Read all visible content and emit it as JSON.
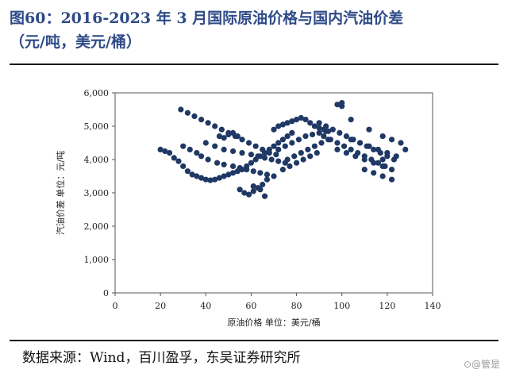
{
  "figure": {
    "title_line1": "图60：2016-2023 年 3 月国际原油价格与国内汽油价差",
    "title_line2": "（元/吨，美元/桶）",
    "source": "数据来源：Wind，百川盈孚，东吴证券研究所",
    "watermark": "⊙@管是"
  },
  "chart_data": {
    "type": "scatter",
    "title": "2016-2023 年 3 月国际原油价格与国内汽油价差",
    "xlabel": "原油价格 单位：美元/桶",
    "ylabel": "汽油价差 单位：元/吨",
    "xlim": [
      0,
      140
    ],
    "ylim": [
      0,
      6000
    ],
    "x_ticks": [
      "0",
      "20",
      "40",
      "60",
      "80",
      "100",
      "120",
      "140"
    ],
    "y_ticks": [
      "0",
      "1,000",
      "2,000",
      "3,000",
      "4,000",
      "5,000",
      "6,000"
    ],
    "grid": false,
    "marker_color": "#1f3864",
    "series": [
      {
        "x": [
          20,
          22,
          24,
          26,
          28,
          30,
          32,
          34,
          36,
          38,
          40,
          42,
          44,
          46,
          48,
          50,
          52,
          54,
          56,
          58,
          60,
          62,
          64,
          66,
          68,
          70,
          72,
          74,
          76,
          78,
          29,
          32,
          35,
          38,
          41,
          44,
          47,
          50,
          53,
          56,
          59,
          62,
          65,
          68,
          71,
          30,
          33,
          36,
          38,
          41,
          45,
          48,
          52,
          55,
          58,
          61,
          64,
          67,
          70,
          40,
          44,
          48,
          52,
          56,
          60,
          63,
          66,
          69,
          72,
          75,
          55,
          57,
          59,
          61,
          63,
          65,
          67,
          61,
          64,
          66,
          70,
          72,
          74,
          76,
          78,
          80,
          82,
          84,
          86,
          88,
          90,
          92,
          94,
          72,
          75,
          78,
          81,
          84,
          87,
          90,
          93,
          76,
          79,
          82,
          85,
          88,
          91,
          94,
          74,
          77,
          80,
          83,
          86,
          89,
          90,
          93,
          96,
          99,
          102,
          105,
          108,
          111,
          114,
          117,
          120,
          123,
          92,
          95,
          98,
          101,
          104,
          107,
          110,
          113,
          116,
          119,
          122,
          98,
          102,
          106,
          110,
          114,
          118,
          104,
          108,
          112,
          116,
          120,
          124,
          128,
          110,
          114,
          118,
          122,
          100,
          104,
          112,
          118,
          122,
          126,
          98,
          100,
          118,
          46,
          48,
          50,
          52,
          54
        ],
        "y": [
          4300,
          4250,
          4200,
          4050,
          3950,
          3800,
          3650,
          3550,
          3500,
          3450,
          3400,
          3380,
          3400,
          3450,
          3500,
          3550,
          3600,
          3650,
          3700,
          3800,
          3900,
          4000,
          4100,
          4200,
          4300,
          4400,
          4500,
          4600,
          4700,
          4800,
          5500,
          5400,
          5300,
          5200,
          5100,
          5000,
          4900,
          4800,
          4700,
          4600,
          4500,
          4400,
          4300,
          4200,
          4150,
          4400,
          4300,
          4200,
          4100,
          4000,
          3900,
          3850,
          3800,
          3750,
          3700,
          3650,
          3600,
          3550,
          3500,
          4500,
          4400,
          4300,
          4250,
          4200,
          4150,
          4100,
          4050,
          4000,
          3950,
          3900,
          3100,
          3000,
          2950,
          3050,
          3150,
          3250,
          3400,
          3200,
          3100,
          2900,
          4900,
          5000,
          5050,
          5100,
          5150,
          5200,
          5250,
          5200,
          5100,
          5000,
          4950,
          4900,
          4850,
          4300,
          4400,
          4500,
          4600,
          4700,
          4750,
          4800,
          4850,
          4000,
          4100,
          4200,
          4300,
          4400,
          4500,
          4600,
          3700,
          3800,
          3900,
          4000,
          4100,
          4200,
          5100,
          5000,
          4900,
          4800,
          4700,
          4600,
          4500,
          4400,
          4300,
          4200,
          4100,
          4000,
          4700,
          4600,
          4500,
          4400,
          4300,
          4200,
          4100,
          4000,
          3900,
          3800,
          3700,
          4300,
          4200,
          4100,
          4000,
          3900,
          3800,
          4600,
          4500,
          4400,
          4300,
          4200,
          4100,
          4300,
          3700,
          3600,
          3500,
          3400,
          5600,
          5200,
          4900,
          4700,
          4600,
          4500,
          5650,
          5700,
          4000,
          4700,
          4650,
          4750,
          4800,
          4700
        ]
      }
    ]
  }
}
